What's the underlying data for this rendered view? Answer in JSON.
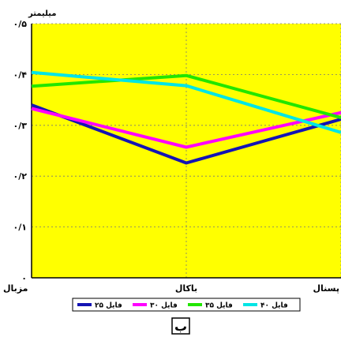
{
  "chart_data": {
    "type": "line",
    "ylabel": "میلیمتر",
    "categories": [
      "مزبال",
      "باکال",
      "پسنال"
    ],
    "yticks": [
      "۰",
      "۰/۱",
      "۰/۲",
      "۰/۳",
      "۰/۴",
      "۰/۵"
    ],
    "ylim": [
      0,
      0.5
    ],
    "grid": true,
    "background": "#ffff00",
    "legend_position": "bottom",
    "series": [
      {
        "name": "فایل ۲۵",
        "color": "#1414b4",
        "values": [
          0.34,
          0.226,
          0.312
        ]
      },
      {
        "name": "فایل ۳۰",
        "color": "#ff00ff",
        "values": [
          0.333,
          0.257,
          0.325
        ]
      },
      {
        "name": "فایل ۳۵",
        "color": "#22e600",
        "values": [
          0.377,
          0.398,
          0.315
        ]
      },
      {
        "name": "فایل ۴۰",
        "color": "#00e5e5",
        "values": [
          0.404,
          0.378,
          0.286
        ]
      }
    ],
    "panel_label": "ب"
  }
}
